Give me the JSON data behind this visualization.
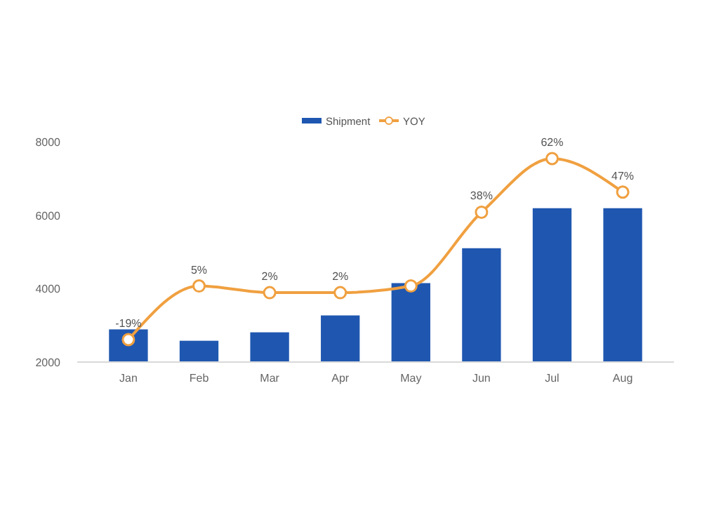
{
  "chart_data": {
    "type": "bar",
    "categories": [
      "Jan",
      "Feb",
      "Mar",
      "Apr",
      "May",
      "Jun",
      "Jul",
      "Aug"
    ],
    "series": [
      {
        "name": "Shipment",
        "color": "#1f57b0",
        "values": [
          2890,
          2580,
          2810,
          3270,
          4150,
          5100,
          6190,
          6190
        ]
      },
      {
        "name": "YOY",
        "type": "line",
        "axis": "y2",
        "color": "#f0a040",
        "marker": "circle",
        "values": [
          -19,
          5,
          2,
          2,
          5,
          38,
          62,
          47
        ],
        "value_labels": [
          "-19%",
          "5%",
          "2%",
          "2%",
          null,
          "38%",
          "62%",
          "47%"
        ]
      }
    ],
    "ylim": [
      2000,
      8000
    ],
    "yticks": [
      2000,
      4000,
      6000,
      8000
    ],
    "tick_labels": "xy",
    "legend": "top",
    "grid": false
  }
}
